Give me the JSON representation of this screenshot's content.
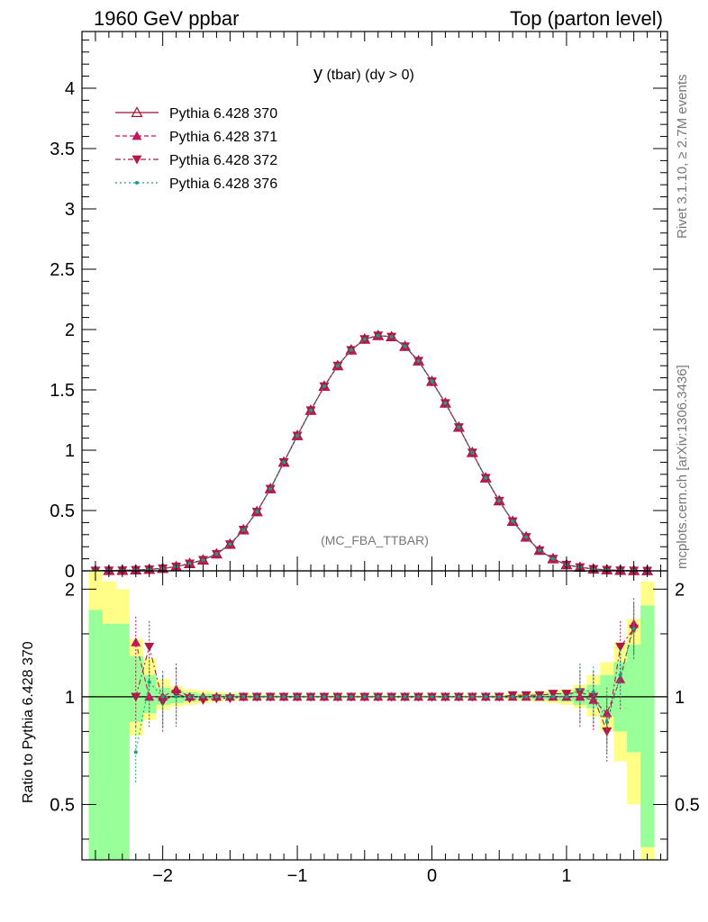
{
  "header": {
    "left": "1960 GeV ppbar",
    "right": "Top (parton level)"
  },
  "side": {
    "rivet": "Rivet 3.1.10, ≥ 2.7M events",
    "mcplots": "mcplots.cern.ch [arXiv:1306.3436]"
  },
  "plot": {
    "title_main": "y",
    "title_sub": " (tbar) (dy > 0)",
    "watermark": "(MC_FBA_TTBAR)",
    "ratio_ylabel": "Ratio to Pythia 6.428 370"
  },
  "chart_data": {
    "type": "line",
    "title": "y (tbar) (dy > 0)",
    "xlabel": "",
    "xlim": [
      -2.6,
      1.75
    ],
    "x_ticks": [
      "−2",
      "−1",
      "0",
      "1"
    ],
    "main": {
      "ylim": [
        0,
        4.47
      ],
      "y_ticks": [
        "0",
        "0.5",
        "1",
        "1.5",
        "2",
        "2.5",
        "3",
        "3.5",
        "4"
      ],
      "x": [
        -2.5,
        -2.4,
        -2.3,
        -2.2,
        -2.1,
        -2.0,
        -1.9,
        -1.8,
        -1.7,
        -1.6,
        -1.5,
        -1.4,
        -1.3,
        -1.2,
        -1.1,
        -1.0,
        -0.9,
        -0.8,
        -0.7,
        -0.6,
        -0.5,
        -0.4,
        -0.3,
        -0.2,
        -0.1,
        0.0,
        0.1,
        0.2,
        0.3,
        0.4,
        0.5,
        0.6,
        0.7,
        0.8,
        0.9,
        1.0,
        1.1,
        1.2,
        1.3,
        1.4,
        1.5,
        1.6
      ],
      "series": [
        {
          "name": "Pythia 6.428 370",
          "color": "#a01030",
          "marker": "triangle-open",
          "dash": "solid",
          "values": [
            0.002,
            0.003,
            0.004,
            0.007,
            0.012,
            0.02,
            0.035,
            0.06,
            0.09,
            0.14,
            0.22,
            0.34,
            0.49,
            0.68,
            0.9,
            1.12,
            1.33,
            1.53,
            1.7,
            1.83,
            1.92,
            1.95,
            1.94,
            1.86,
            1.74,
            1.57,
            1.39,
            1.19,
            0.98,
            0.77,
            0.58,
            0.41,
            0.28,
            0.17,
            0.1,
            0.05,
            0.03,
            0.015,
            0.008,
            0.004,
            0.002,
            0.001
          ]
        },
        {
          "name": "Pythia 6.428 371",
          "color": "#c0185a",
          "marker": "triangle-up",
          "dash": "5,3",
          "values": [
            0.002,
            0.003,
            0.004,
            0.007,
            0.012,
            0.02,
            0.035,
            0.06,
            0.09,
            0.14,
            0.22,
            0.34,
            0.49,
            0.68,
            0.9,
            1.12,
            1.33,
            1.53,
            1.7,
            1.83,
            1.92,
            1.95,
            1.94,
            1.86,
            1.74,
            1.57,
            1.39,
            1.19,
            0.98,
            0.77,
            0.58,
            0.41,
            0.28,
            0.17,
            0.1,
            0.05,
            0.03,
            0.015,
            0.008,
            0.004,
            0.002,
            0.001
          ]
        },
        {
          "name": "Pythia 6.428 372",
          "color": "#b01848",
          "marker": "triangle-down",
          "dash": "6,3,2,3",
          "values": [
            0.002,
            0.003,
            0.004,
            0.007,
            0.012,
            0.02,
            0.035,
            0.06,
            0.09,
            0.14,
            0.22,
            0.34,
            0.49,
            0.68,
            0.9,
            1.12,
            1.33,
            1.53,
            1.7,
            1.83,
            1.92,
            1.95,
            1.94,
            1.86,
            1.74,
            1.57,
            1.39,
            1.19,
            0.98,
            0.77,
            0.58,
            0.41,
            0.28,
            0.17,
            0.1,
            0.05,
            0.03,
            0.015,
            0.008,
            0.004,
            0.002,
            0.001
          ]
        },
        {
          "name": "Pythia 6.428 376",
          "color": "#1aa080",
          "marker": "dot",
          "dash": "2,3",
          "values": [
            0.002,
            0.003,
            0.004,
            0.007,
            0.012,
            0.02,
            0.035,
            0.06,
            0.09,
            0.14,
            0.22,
            0.34,
            0.49,
            0.68,
            0.9,
            1.12,
            1.33,
            1.53,
            1.7,
            1.83,
            1.92,
            1.95,
            1.94,
            1.86,
            1.74,
            1.57,
            1.39,
            1.19,
            0.98,
            0.77,
            0.58,
            0.41,
            0.28,
            0.17,
            0.1,
            0.05,
            0.03,
            0.015,
            0.008,
            0.004,
            0.002,
            0.001
          ]
        }
      ]
    },
    "ratio": {
      "ylim": [
        0.35,
        2.25
      ],
      "y_ticks": [
        "0.5",
        "1",
        "2"
      ],
      "x": [
        -2.5,
        -2.4,
        -2.3,
        -2.2,
        -2.1,
        -2.0,
        -1.9,
        -1.8,
        -1.7,
        -1.6,
        -1.5,
        -1.4,
        -1.3,
        -1.2,
        -1.1,
        -1.0,
        -0.9,
        -0.8,
        -0.7,
        -0.6,
        -0.5,
        -0.4,
        -0.3,
        -0.2,
        -0.1,
        0.0,
        0.1,
        0.2,
        0.3,
        0.4,
        0.5,
        0.6,
        0.7,
        0.8,
        0.9,
        1.0,
        1.1,
        1.2,
        1.3,
        1.4,
        1.5,
        1.6
      ],
      "band_yellow": [
        [
          0.25,
          2.4
        ],
        [
          0.25,
          2.1
        ],
        [
          0.25,
          2.0
        ],
        [
          0.78,
          1.45
        ],
        [
          0.86,
          1.28
        ],
        [
          0.92,
          1.12
        ],
        [
          0.94,
          1.07
        ],
        [
          0.95,
          1.05
        ],
        [
          0.96,
          1.04
        ],
        [
          0.97,
          1.03
        ],
        [
          0.975,
          1.025
        ],
        [
          0.98,
          1.02
        ],
        [
          0.985,
          1.015
        ],
        [
          0.985,
          1.015
        ],
        [
          0.99,
          1.01
        ],
        [
          0.99,
          1.01
        ],
        [
          0.99,
          1.01
        ],
        [
          0.99,
          1.01
        ],
        [
          0.99,
          1.01
        ],
        [
          0.99,
          1.01
        ],
        [
          0.99,
          1.01
        ],
        [
          0.99,
          1.01
        ],
        [
          0.99,
          1.01
        ],
        [
          0.99,
          1.01
        ],
        [
          0.99,
          1.01
        ],
        [
          0.99,
          1.01
        ],
        [
          0.99,
          1.01
        ],
        [
          0.99,
          1.01
        ],
        [
          0.99,
          1.01
        ],
        [
          0.99,
          1.01
        ],
        [
          0.985,
          1.015
        ],
        [
          0.98,
          1.02
        ],
        [
          0.975,
          1.025
        ],
        [
          0.97,
          1.03
        ],
        [
          0.96,
          1.04
        ],
        [
          0.95,
          1.05
        ],
        [
          0.93,
          1.08
        ],
        [
          0.88,
          1.15
        ],
        [
          0.8,
          1.25
        ],
        [
          0.66,
          1.42
        ],
        [
          0.5,
          1.65
        ],
        [
          0.25,
          2.1
        ]
      ],
      "band_green": [
        [
          0.25,
          1.75
        ],
        [
          0.25,
          1.6
        ],
        [
          0.25,
          1.6
        ],
        [
          0.85,
          1.3
        ],
        [
          0.9,
          1.15
        ],
        [
          0.95,
          1.06
        ],
        [
          0.96,
          1.04
        ],
        [
          0.97,
          1.03
        ],
        [
          0.98,
          1.02
        ],
        [
          0.985,
          1.015
        ],
        [
          0.985,
          1.015
        ],
        [
          0.99,
          1.01
        ],
        [
          0.99,
          1.01
        ],
        [
          0.99,
          1.01
        ],
        [
          0.992,
          1.008
        ],
        [
          0.992,
          1.008
        ],
        [
          0.992,
          1.008
        ],
        [
          0.992,
          1.008
        ],
        [
          0.992,
          1.008
        ],
        [
          0.992,
          1.008
        ],
        [
          0.992,
          1.008
        ],
        [
          0.992,
          1.008
        ],
        [
          0.992,
          1.008
        ],
        [
          0.992,
          1.008
        ],
        [
          0.992,
          1.008
        ],
        [
          0.992,
          1.008
        ],
        [
          0.992,
          1.008
        ],
        [
          0.992,
          1.008
        ],
        [
          0.992,
          1.008
        ],
        [
          0.992,
          1.008
        ],
        [
          0.99,
          1.01
        ],
        [
          0.99,
          1.01
        ],
        [
          0.985,
          1.015
        ],
        [
          0.98,
          1.02
        ],
        [
          0.975,
          1.025
        ],
        [
          0.97,
          1.03
        ],
        [
          0.95,
          1.05
        ],
        [
          0.93,
          1.08
        ],
        [
          0.88,
          1.15
        ],
        [
          0.8,
          1.25
        ],
        [
          0.7,
          1.4
        ],
        [
          0.38,
          1.8
        ]
      ],
      "series": [
        {
          "name": "Pythia 6.428 371",
          "values": [
            null,
            null,
            null,
            1.42,
            1.0,
            1.0,
            1.05,
            1.0,
            1.0,
            1.0,
            1.0,
            1.0,
            1.0,
            1.0,
            1.0,
            1.0,
            1.0,
            1.0,
            1.0,
            1.0,
            1.0,
            1.0,
            1.0,
            1.0,
            1.0,
            1.0,
            1.0,
            1.0,
            1.0,
            1.0,
            1.0,
            1.0,
            1.0,
            1.0,
            1.0,
            1.0,
            1.0,
            0.98,
            0.9,
            1.12,
            1.6,
            null
          ]
        },
        {
          "name": "Pythia 6.428 372",
          "values": [
            null,
            null,
            null,
            1.0,
            1.38,
            0.97,
            1.02,
            0.99,
            0.98,
            0.99,
            0.99,
            1.0,
            1.0,
            1.0,
            1.0,
            1.0,
            1.0,
            1.0,
            1.0,
            1.0,
            1.0,
            1.0,
            1.0,
            1.0,
            1.0,
            1.0,
            1.0,
            1.0,
            1.0,
            1.0,
            1.0,
            1.01,
            1.01,
            1.01,
            1.02,
            1.02,
            1.03,
            1.0,
            0.8,
            1.38,
            1.55,
            null
          ]
        },
        {
          "name": "Pythia 6.428 376",
          "values": [
            null,
            null,
            null,
            0.7,
            1.1,
            1.0,
            1.0,
            1.0,
            1.0,
            1.0,
            1.0,
            1.0,
            1.0,
            1.0,
            1.0,
            1.0,
            1.0,
            1.0,
            1.0,
            1.0,
            1.0,
            1.0,
            1.0,
            1.0,
            1.0,
            1.0,
            1.0,
            1.0,
            1.0,
            1.0,
            1.0,
            1.0,
            1.0,
            1.0,
            1.0,
            1.0,
            1.05,
            1.03,
            0.85,
            1.15,
            1.55,
            null
          ]
        }
      ]
    }
  }
}
